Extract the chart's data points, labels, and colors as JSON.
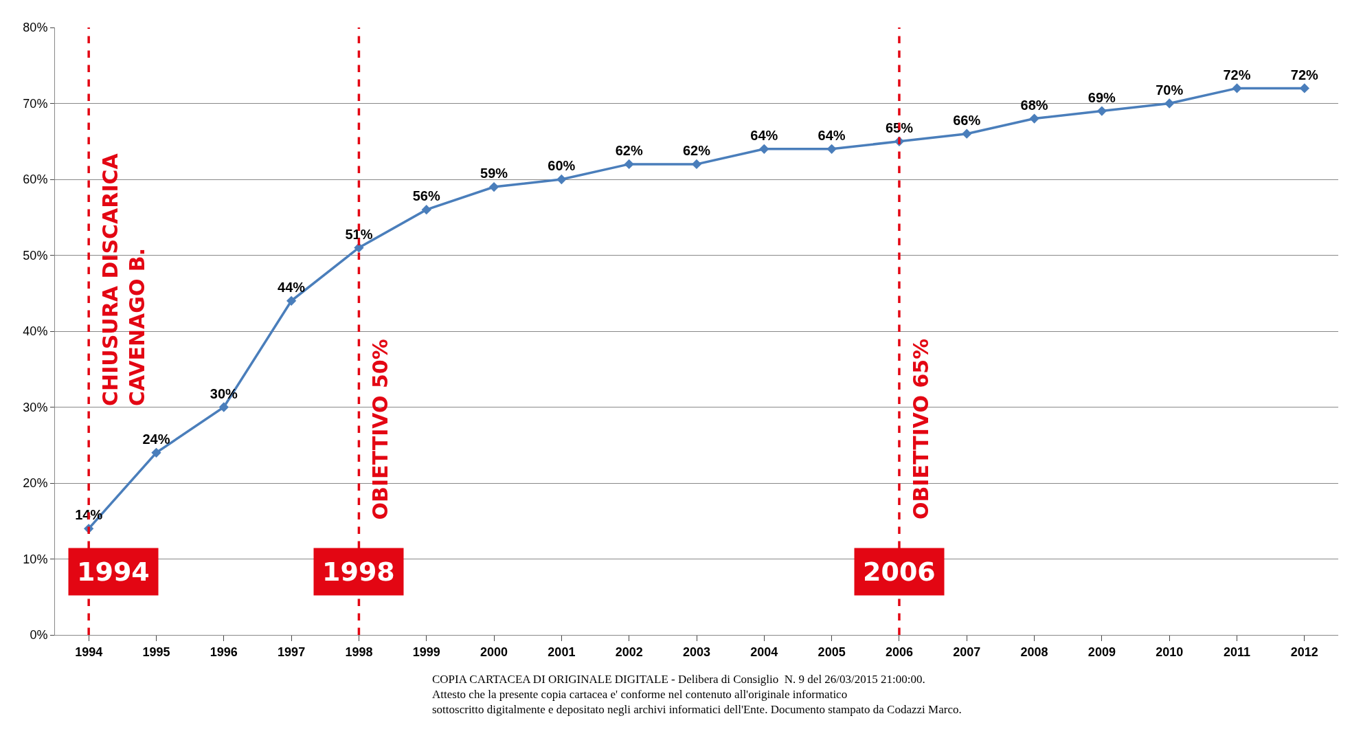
{
  "chart_data": {
    "type": "line",
    "x": [
      1994,
      1995,
      1996,
      1997,
      1998,
      1999,
      2000,
      2001,
      2002,
      2003,
      2004,
      2005,
      2006,
      2007,
      2008,
      2009,
      2010,
      2011,
      2012
    ],
    "values": [
      14,
      24,
      30,
      44,
      51,
      56,
      59,
      60,
      62,
      62,
      64,
      64,
      65,
      66,
      68,
      69,
      70,
      72,
      72
    ],
    "value_labels": [
      "14%",
      "24%",
      "30%",
      "44%",
      "51%",
      "56%",
      "59%",
      "60%",
      "62%",
      "62%",
      "64%",
      "64%",
      "65%",
      "66%",
      "68%",
      "69%",
      "70%",
      "72%",
      "72%"
    ],
    "color": "#4a7ebb",
    "marker": "diamond",
    "line_style": "solid",
    "xlim": [
      1993.5,
      2012.5
    ],
    "xticks": [
      1994,
      1995,
      1996,
      1997,
      1998,
      1999,
      2000,
      2001,
      2002,
      2003,
      2004,
      2005,
      2006,
      2007,
      2008,
      2009,
      2010,
      2011,
      2012
    ],
    "ylim": [
      0,
      80
    ],
    "yticks": [
      {
        "value": 0,
        "label": "0%"
      },
      {
        "value": 10,
        "label": "10%"
      },
      {
        "value": 20,
        "label": "20%"
      },
      {
        "value": 30,
        "label": "30%"
      },
      {
        "value": 40,
        "label": "40%"
      },
      {
        "value": 50,
        "label": "50%"
      },
      {
        "value": 60,
        "label": "60%"
      },
      {
        "value": 70,
        "label": "70%"
      },
      {
        "value": 80,
        "label": "80%"
      }
    ],
    "grid": "y",
    "ref_lines": [
      {
        "axis": "x",
        "value": 1994,
        "label": "CHIUSURA DISCARICA\nCAVENAGO B.",
        "color": "#e30613",
        "line_style": "dashed"
      },
      {
        "axis": "x",
        "value": 1998,
        "label": "OBIETTIVO 50%",
        "color": "#e30613",
        "line_style": "dashed"
      },
      {
        "axis": "x",
        "value": 2006,
        "label": "OBIETTIVO 65%",
        "color": "#e30613",
        "line_style": "dashed"
      }
    ],
    "annotations": [
      "1994",
      "1998",
      "2006",
      "COPIA CARTACEA DI ORIGINALE DIGITALE - Delibera di Consiglio  N. 9 del 26/03/2015 21:00:00.\nAttesto che la presente copia cartacea e' conforme nel contenuto all'originale informatico\nsottoscritto digitalmente e depositato negli archivi informatici dell'Ente. Documento stampato da Codazzi Marco."
    ]
  }
}
